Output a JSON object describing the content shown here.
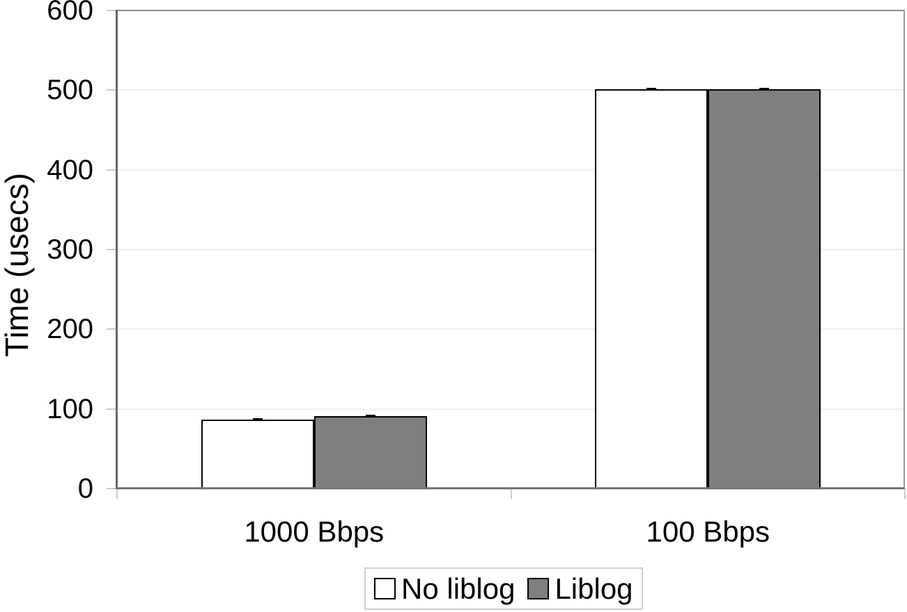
{
  "chart_data": {
    "type": "bar",
    "title": "",
    "categories": [
      "1000 Bbps",
      "100 Bbps"
    ],
    "series": [
      {
        "name": "No liblog",
        "values": [
          87,
          501
        ],
        "fill": "#ffffff"
      },
      {
        "name": "Liblog",
        "values": [
          91,
          501
        ],
        "fill": "#7f7f7f"
      }
    ],
    "xlabel": "",
    "ylabel": "Time (usecs)",
    "ylim": [
      0,
      600
    ],
    "yticks": [
      0,
      100,
      200,
      300,
      400,
      500,
      600
    ],
    "grid": "horizontal-major",
    "error_bars": {
      "shown": true,
      "approx_magnitude": 2
    },
    "legend_position": "bottom",
    "bar_border_color": "#000000",
    "axis_color": "#666666",
    "gridline_color": "#efefef",
    "tick_color": "#cccccc",
    "background_color": "#ffffff"
  }
}
